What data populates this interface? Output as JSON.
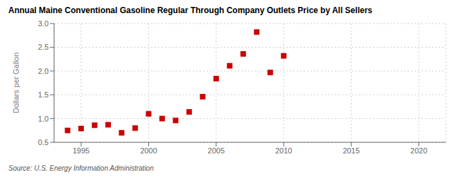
{
  "chart_data": {
    "type": "scatter",
    "title": "Annual Maine Conventional Gasoline Regular Through Company Outlets Price by All Sellers",
    "ylabel": "Dollars per Gallon",
    "annotation": "Source: U.S. Energy Information Administration",
    "x": [
      1994,
      1995,
      1996,
      1997,
      1998,
      1999,
      2000,
      2001,
      2002,
      2003,
      2004,
      2005,
      2006,
      2007,
      2008,
      2009,
      2010
    ],
    "values": [
      0.75,
      0.79,
      0.86,
      0.87,
      0.7,
      0.8,
      1.1,
      1.0,
      0.96,
      1.14,
      1.46,
      1.84,
      2.11,
      2.36,
      2.82,
      1.97,
      2.32
    ],
    "color": "#cc0000",
    "marker": "square",
    "xlim": [
      1993,
      2022
    ],
    "ylim": [
      0.5,
      3.0
    ],
    "xticks": [
      1995,
      2000,
      2005,
      2010,
      2015,
      2020
    ],
    "yticks": [
      0.5,
      {
        "value": 1.0,
        "label": "1.0"
      },
      1.5,
      {
        "value": 2.0,
        "label": "2.0"
      },
      2.5,
      {
        "value": 3.0,
        "label": "3.0"
      }
    ],
    "grid": true
  }
}
